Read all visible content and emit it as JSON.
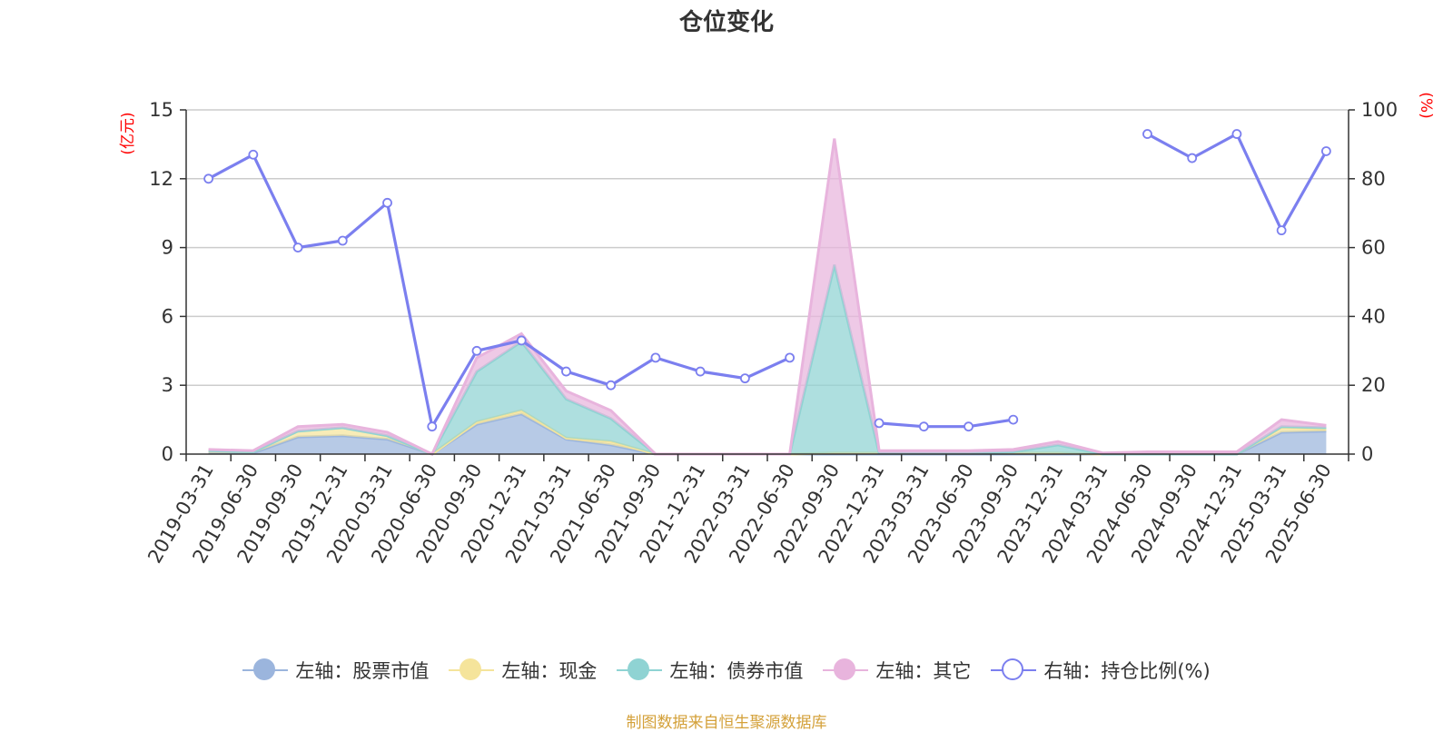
{
  "title": "仓位变化",
  "source_note": "制图数据来自恒生聚源数据库",
  "legend": [
    {
      "label": "左轴：股票市值",
      "color": "#9bb5dd",
      "icon": "filled-circle-icon"
    },
    {
      "label": "左轴：现金",
      "color": "#f5e49b",
      "icon": "filled-circle-icon"
    },
    {
      "label": "左轴：债券市值",
      "color": "#8fd3d3",
      "icon": "filled-circle-icon"
    },
    {
      "label": "左轴：其它",
      "color": "#e8b4dd",
      "icon": "filled-circle-icon"
    },
    {
      "label": "右轴：持仓比例(%)",
      "color": "#7b7fef",
      "icon": "hollow-circle-icon"
    }
  ],
  "chart_data": {
    "type": "area",
    "title": "仓位变化",
    "left_axis": {
      "unit_label": "(亿元)",
      "ylim": [
        0,
        15
      ],
      "ticks": [
        0,
        3,
        6,
        9,
        12,
        15
      ]
    },
    "right_axis": {
      "unit_label": "(%)",
      "ylim": [
        0,
        100
      ],
      "ticks": [
        0,
        20,
        40,
        60,
        80,
        100
      ]
    },
    "categories": [
      "2019-03-31",
      "2019-06-30",
      "2019-09-30",
      "2019-12-31",
      "2020-03-31",
      "2020-06-30",
      "2020-09-30",
      "2020-12-31",
      "2021-03-31",
      "2021-06-30",
      "2021-09-30",
      "2021-12-31",
      "2022-03-31",
      "2022-06-30",
      "2022-09-30",
      "2022-12-31",
      "2023-03-31",
      "2023-06-30",
      "2023-09-30",
      "2023-12-31",
      "2024-03-31",
      "2024-06-30",
      "2024-09-30",
      "2024-12-31",
      "2025-03-31",
      "2025-06-30"
    ],
    "grid": true,
    "legend_position": "bottom",
    "series": [
      {
        "name": "左轴：股票市值",
        "axis": "left",
        "stacked": true,
        "color": "#9bb5dd",
        "values": [
          0.05,
          0.05,
          0.75,
          0.8,
          0.65,
          0.0,
          1.3,
          1.75,
          0.65,
          0.4,
          0.0,
          0.0,
          0.0,
          0.0,
          0.0,
          0.0,
          0.0,
          0.0,
          0.0,
          0.0,
          0.0,
          0.0,
          0.0,
          0.0,
          0.95,
          1.0
        ]
      },
      {
        "name": "左轴：现金",
        "axis": "left",
        "stacked": true,
        "color": "#f5e49b",
        "values": [
          0.1,
          0.05,
          0.25,
          0.35,
          0.15,
          0.0,
          0.1,
          0.15,
          0.05,
          0.15,
          0.0,
          0.0,
          0.0,
          0.0,
          0.05,
          0.05,
          0.05,
          0.05,
          0.05,
          0.05,
          0.0,
          0.0,
          0.0,
          0.0,
          0.2,
          0.1
        ]
      },
      {
        "name": "左轴：债券市值",
        "axis": "left",
        "stacked": true,
        "color": "#8fd3d3",
        "values": [
          0.0,
          0.0,
          0.0,
          0.0,
          0.0,
          0.0,
          2.2,
          3.0,
          1.7,
          1.0,
          0.0,
          0.0,
          0.0,
          0.0,
          8.2,
          0.0,
          0.0,
          0.0,
          0.05,
          0.35,
          0.0,
          0.0,
          0.0,
          0.0,
          0.05,
          0.05
        ]
      },
      {
        "name": "左轴：其它",
        "axis": "left",
        "stacked": true,
        "color": "#e8b4dd",
        "values": [
          0.05,
          0.05,
          0.2,
          0.15,
          0.15,
          0.0,
          0.6,
          0.35,
          0.35,
          0.35,
          0.0,
          0.0,
          0.0,
          0.0,
          5.5,
          0.1,
          0.1,
          0.1,
          0.1,
          0.15,
          0.05,
          0.1,
          0.1,
          0.1,
          0.3,
          0.1
        ]
      },
      {
        "name": "右轴：持仓比例(%)",
        "axis": "right",
        "type": "line",
        "color": "#7b7fef",
        "values": [
          80,
          87,
          60,
          62,
          73,
          8,
          30,
          33,
          24,
          20,
          28,
          24,
          22,
          28,
          null,
          9,
          8,
          8,
          10,
          null,
          null,
          93,
          86,
          93,
          65,
          88
        ]
      }
    ]
  }
}
